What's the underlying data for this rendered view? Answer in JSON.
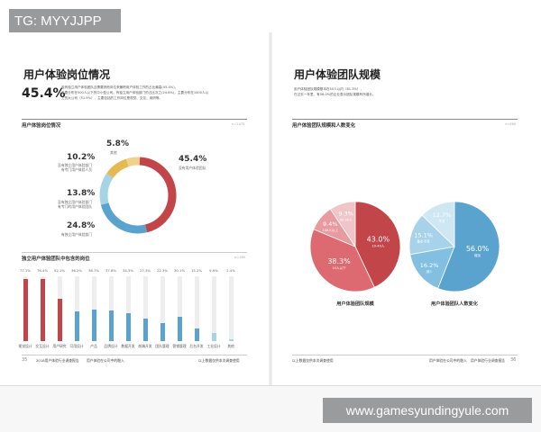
{
  "overlay_tag": "TG: MYYJJPP",
  "watermark": "www.gamesyundingyule.com",
  "left": {
    "title": "用户体验岗位情况",
    "big_number": "45.4%",
    "paragraph": [
      "没有独立用户体验团队且需要其他岗位来兼职用户体验工作的占比最高(45.4%)，",
      "主要分布在500人以下的中小型公司。有独立用户体验部门的占比次之(24.8%)，主要分布在1000人以",
      "上的大公司（51.9%），主要包括的工作岗位是视觉、交互、用研等。"
    ],
    "donut_section_title": "用户体验岗位情况",
    "donut_n": "n=2475",
    "donut_colors": [
      "#c2454a",
      "#5ba3cf",
      "#a7d3e6",
      "#e6b84f"
    ],
    "donut_values": [
      45.4,
      24.8,
      13.8,
      10.2,
      5.8
    ],
    "donut_labels": [
      {
        "pct": "45.4%",
        "text": [
          "没有用户体验团队"
        ]
      },
      {
        "pct": "24.8%",
        "text": [
          "有独立用户体验部门"
        ]
      },
      {
        "pct": "13.8%",
        "text": [
          "没有独立用户体验部门",
          "有专门的用户体验团队"
        ]
      },
      {
        "pct": "10.2%",
        "text": [
          "没有独立用户体验部门",
          "有专门用户体验人员"
        ]
      },
      {
        "pct": "5.8%",
        "text": [
          "其他"
        ]
      }
    ],
    "bars_section_title": "独立用户体验团队中包含的岗位",
    "bars_n": "n=360",
    "bars": [
      {
        "label": "视觉设计",
        "value": 77.1,
        "val_text": "77.1%",
        "color": "#c2454a"
      },
      {
        "label": "交互设计",
        "value": 76.4,
        "val_text": "76.4%",
        "color": "#c2454a"
      },
      {
        "label": "用户研究",
        "value": 52.1,
        "val_text": "52.1%",
        "color": "#c2454a"
      },
      {
        "label": "可用设计",
        "value": 36.2,
        "val_text": "36.2%",
        "color": "#5ba3cf"
      },
      {
        "label": "产品",
        "value": 38.7,
        "val_text": "38.7%",
        "color": "#5ba3cf"
      },
      {
        "label": "品牌设计",
        "value": 37.8,
        "val_text": "37.8%",
        "color": "#5ba3cf"
      },
      {
        "label": "数据开发",
        "value": 34.3,
        "val_text": "34.3%",
        "color": "#5ba3cf"
      },
      {
        "label": "前端开发",
        "value": 27.3,
        "val_text": "27.3%",
        "color": "#5ba3cf"
      },
      {
        "label": "团队管理",
        "value": 22.3,
        "val_text": "22.3%",
        "color": "#5ba3cf"
      },
      {
        "label": "营销管理",
        "value": 30.1,
        "val_text": "30.1%",
        "color": "#5ba3cf"
      },
      {
        "label": "后台开发",
        "value": 15.2,
        "val_text": "15.2%",
        "color": "#5ba3cf"
      },
      {
        "label": "工业设计",
        "value": 9.9,
        "val_text": "9.9%",
        "color": "#a7d3e6"
      },
      {
        "label": "其他",
        "value": 2.4,
        "val_text": "2.4%",
        "color": "#a7d3e6"
      }
    ],
    "footer_page": "35",
    "footer_report": "2018用户体验行业调查报告",
    "footer_chapter": "用户体验在公司中的融入",
    "footer_right": "以上数据仅供本次调查使用"
  },
  "right": {
    "title": "用户体验团队规模",
    "paragraph": [
      "用户体验团队规模基本在50人以内（81.3%），",
      "在过去一年里，有56.0%的企业表示团队规模有所增长。"
    ],
    "section_title": "用户体验团队规模和人数变化",
    "section_n": "n=860",
    "pie1": {
      "title": "用户体验团队规模",
      "colors": [
        "#c2454a",
        "#dd6a70",
        "#e79aa0",
        "#f0c5c8"
      ],
      "slices": [
        {
          "value": 43.0,
          "pct": "43.0%",
          "label": "10-49人"
        },
        {
          "value": 38.3,
          "pct": "38.3%",
          "label": "10人以下"
        },
        {
          "value": 9.4,
          "pct": "9.4%",
          "label": "100人以上"
        },
        {
          "value": 9.3,
          "pct": "9.3%",
          "label": "50-99人"
        }
      ]
    },
    "pie2": {
      "title": "用户体验团队人数变化",
      "colors": [
        "#5ba3cf",
        "#82bfe0",
        "#a8d2ea",
        "#cfe6f3"
      ],
      "slices": [
        {
          "value": 56.0,
          "pct": "56.0%",
          "label": "增加"
        },
        {
          "value": 16.2,
          "pct": "16.2%",
          "label": "减少"
        },
        {
          "value": 15.1,
          "pct": "15.1%",
          "label": "基本不变"
        },
        {
          "value": 12.7,
          "pct": "12.7%",
          "label": "不变"
        }
      ]
    },
    "footer_page": "36",
    "footer_report": "用户体验行业调查报告",
    "footer_chapter": "用户体验在公司中的融入",
    "footer_left": "以上数据仅供本次调查使用"
  }
}
